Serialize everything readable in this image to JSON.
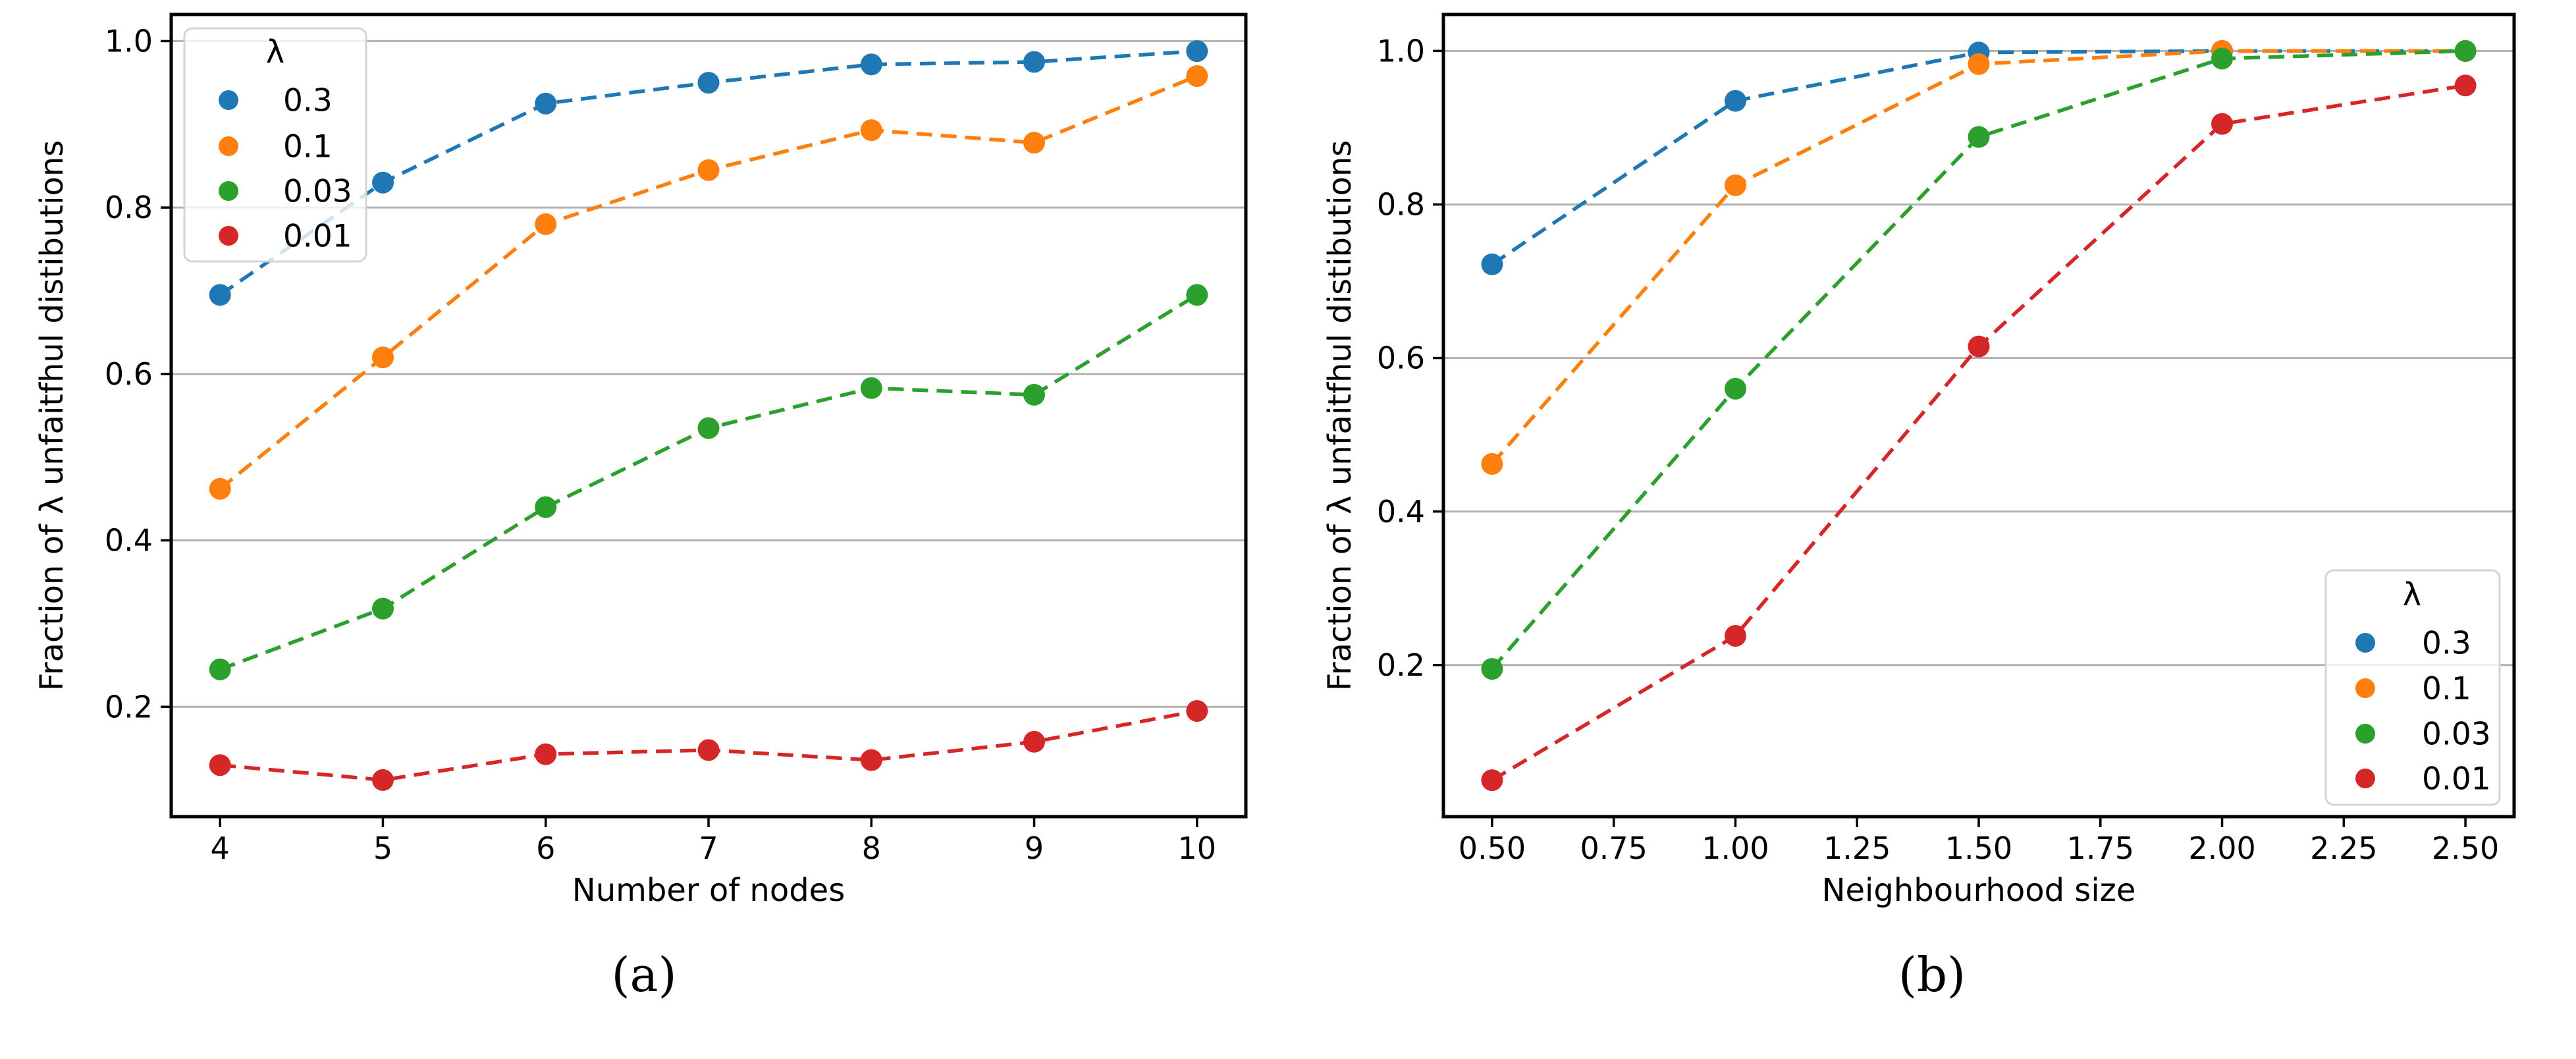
{
  "figure": {
    "background": "#ffffff",
    "caption_a": "(a)",
    "caption_b": "(b)"
  },
  "colors": {
    "series_blue": "#1f77b4",
    "series_orange": "#ff7f0e",
    "series_green": "#2ca02c",
    "series_red": "#d62728",
    "gridline": "#b0b0b0",
    "spine": "#000000",
    "legend_border": "#d4d4d4",
    "legend_background": "rgba(255,255,255,0.8)"
  },
  "chart_data": [
    {
      "id": "a",
      "type": "line",
      "caption": "(a)",
      "title": "",
      "xlabel": "Number of nodes",
      "ylabel": "Fraction of λ unfaitfhul distibutions",
      "x": [
        4,
        5,
        6,
        7,
        8,
        9,
        10
      ],
      "xticks": [
        4,
        5,
        6,
        7,
        8,
        9,
        10
      ],
      "xtick_labels": [
        "4",
        "5",
        "6",
        "7",
        "8",
        "9",
        "10"
      ],
      "yticks": [
        0.2,
        0.4,
        0.6,
        0.8,
        1.0
      ],
      "ytick_labels": [
        "0.2",
        "0.4",
        "0.6",
        "0.8",
        "1.0"
      ],
      "xlim": [
        3.7,
        10.3
      ],
      "ylim": [
        0.068,
        1.032
      ],
      "grid": "horizontal",
      "line_style": "dashed",
      "marker": "circle",
      "legend": {
        "title": "λ",
        "position": "upper-left"
      },
      "series": [
        {
          "name": "0.3",
          "color": "#1f77b4",
          "values": [
            0.695,
            0.83,
            0.925,
            0.95,
            0.972,
            0.975,
            0.988
          ]
        },
        {
          "name": "0.1",
          "color": "#ff7f0e",
          "values": [
            0.462,
            0.62,
            0.78,
            0.845,
            0.893,
            0.878,
            0.958
          ]
        },
        {
          "name": "0.03",
          "color": "#2ca02c",
          "values": [
            0.245,
            0.318,
            0.44,
            0.535,
            0.583,
            0.575,
            0.695
          ]
        },
        {
          "name": "0.01",
          "color": "#d62728",
          "values": [
            0.13,
            0.112,
            0.143,
            0.148,
            0.136,
            0.158,
            0.195
          ]
        }
      ]
    },
    {
      "id": "b",
      "type": "line",
      "caption": "(b)",
      "title": "",
      "xlabel": "Neighbourhood size",
      "ylabel": "Fraction of λ unfaitfhul distibutions",
      "x": [
        0.5,
        1.0,
        1.5,
        2.0,
        2.5
      ],
      "xticks": [
        0.5,
        0.75,
        1.0,
        1.25,
        1.5,
        1.75,
        2.0,
        2.25,
        2.5
      ],
      "xtick_labels": [
        "0.50",
        "0.75",
        "1.00",
        "1.25",
        "1.50",
        "1.75",
        "2.00",
        "2.25",
        "2.50"
      ],
      "yticks": [
        0.2,
        0.4,
        0.6,
        0.8,
        1.0
      ],
      "ytick_labels": [
        "0.2",
        "0.4",
        "0.6",
        "0.8",
        "1.0"
      ],
      "xlim": [
        0.4,
        2.6
      ],
      "ylim": [
        0.0025,
        1.0475
      ],
      "grid": "horizontal",
      "line_style": "dashed",
      "marker": "circle",
      "legend": {
        "title": "λ",
        "position": "lower-right"
      },
      "series": [
        {
          "name": "0.3",
          "color": "#1f77b4",
          "values": [
            0.722,
            0.935,
            0.998,
            1.0,
            1.0
          ]
        },
        {
          "name": "0.1",
          "color": "#ff7f0e",
          "values": [
            0.462,
            0.825,
            0.983,
            1.0,
            1.0
          ]
        },
        {
          "name": "0.03",
          "color": "#2ca02c",
          "values": [
            0.195,
            0.56,
            0.888,
            0.99,
            1.0
          ]
        },
        {
          "name": "0.01",
          "color": "#d62728",
          "values": [
            0.05,
            0.238,
            0.615,
            0.905,
            0.955
          ]
        }
      ]
    }
  ]
}
